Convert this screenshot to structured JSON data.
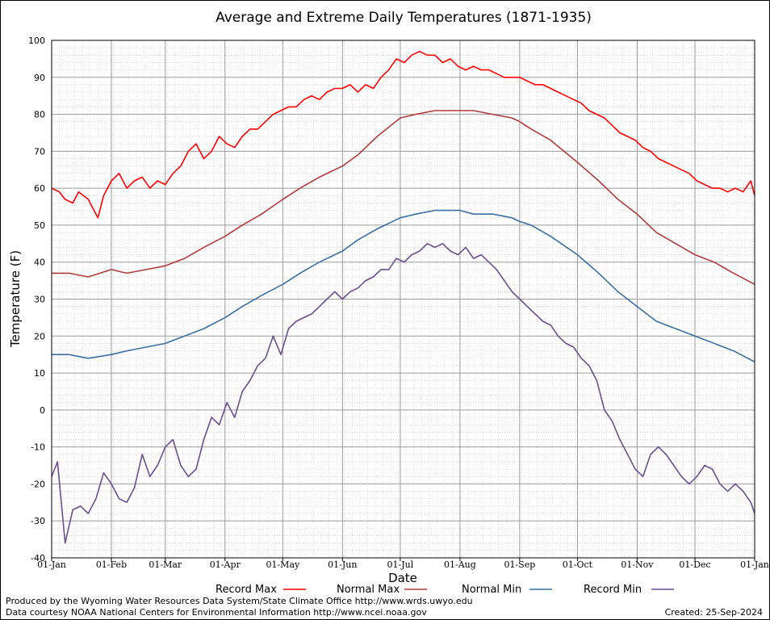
{
  "chart_data": {
    "type": "line",
    "title": "Average and Extreme Daily Temperatures (1871-1935)",
    "xlabel": "Date",
    "ylabel": "Temperature (F)",
    "ylim": [
      -40,
      100
    ],
    "yticks": [
      -40,
      -30,
      -20,
      -10,
      0,
      10,
      20,
      30,
      40,
      50,
      60,
      70,
      80,
      90,
      100
    ],
    "xlim_day_of_year": [
      1,
      366
    ],
    "xticks": [
      {
        "label": "01-Jan",
        "day": 1
      },
      {
        "label": "01-Feb",
        "day": 32
      },
      {
        "label": "01-Mar",
        "day": 60
      },
      {
        "label": "01-Apr",
        "day": 91
      },
      {
        "label": "01-May",
        "day": 121
      },
      {
        "label": "01-Jun",
        "day": 152
      },
      {
        "label": "01-Jul",
        "day": 182
      },
      {
        "label": "01-Aug",
        "day": 213
      },
      {
        "label": "01-Sep",
        "day": 244
      },
      {
        "label": "01-Oct",
        "day": 274
      },
      {
        "label": "01-Nov",
        "day": 305
      },
      {
        "label": "01-Dec",
        "day": 335
      },
      {
        "label": "01-Jan",
        "day": 366
      }
    ],
    "grid": true,
    "legend_position": "bottom",
    "series": [
      {
        "name": "Record Max",
        "color": "#ff0000",
        "x": [
          1,
          5,
          8,
          12,
          15,
          20,
          25,
          28,
          32,
          36,
          40,
          44,
          48,
          52,
          56,
          60,
          64,
          68,
          72,
          76,
          80,
          84,
          88,
          92,
          96,
          100,
          104,
          108,
          112,
          116,
          120,
          124,
          128,
          132,
          136,
          140,
          144,
          148,
          152,
          156,
          160,
          164,
          168,
          172,
          176,
          180,
          184,
          188,
          192,
          196,
          200,
          204,
          208,
          212,
          216,
          220,
          224,
          228,
          232,
          236,
          240,
          244,
          248,
          252,
          256,
          260,
          264,
          268,
          272,
          276,
          280,
          284,
          288,
          292,
          296,
          300,
          304,
          308,
          312,
          316,
          320,
          324,
          328,
          332,
          336,
          340,
          344,
          348,
          352,
          356,
          360,
          364,
          366
        ],
        "y": [
          60,
          59,
          57,
          56,
          59,
          57,
          52,
          58,
          62,
          64,
          60,
          62,
          63,
          60,
          62,
          61,
          64,
          66,
          70,
          72,
          68,
          70,
          74,
          72,
          71,
          74,
          76,
          76,
          78,
          80,
          81,
          82,
          82,
          84,
          85,
          84,
          86,
          87,
          87,
          88,
          86,
          88,
          87,
          90,
          92,
          95,
          94,
          96,
          97,
          96,
          96,
          94,
          95,
          93,
          92,
          93,
          92,
          92,
          91,
          90,
          90,
          90,
          89,
          88,
          88,
          87,
          86,
          85,
          84,
          83,
          81,
          80,
          79,
          77,
          75,
          74,
          73,
          71,
          70,
          68,
          67,
          66,
          65,
          64,
          62,
          61,
          60,
          60,
          59,
          60,
          59,
          62,
          58
        ]
      },
      {
        "name": "Normal Max",
        "color": "#b03a3a",
        "x": [
          1,
          10,
          20,
          32,
          40,
          50,
          60,
          70,
          80,
          91,
          100,
          110,
          121,
          130,
          140,
          152,
          160,
          170,
          182,
          190,
          200,
          213,
          220,
          230,
          240,
          244,
          250,
          260,
          274,
          285,
          295,
          305,
          315,
          325,
          335,
          345,
          355,
          366
        ],
        "y": [
          37,
          37,
          36,
          38,
          37,
          38,
          39,
          41,
          44,
          47,
          50,
          53,
          57,
          60,
          63,
          66,
          69,
          74,
          79,
          80,
          81,
          81,
          81,
          80,
          79,
          78,
          76,
          73,
          67,
          62,
          57,
          53,
          48,
          45,
          42,
          40,
          37,
          34
        ]
      },
      {
        "name": "Normal Min",
        "color": "#3a6ea5",
        "x": [
          1,
          10,
          20,
          32,
          40,
          50,
          60,
          70,
          80,
          91,
          100,
          110,
          121,
          130,
          140,
          152,
          160,
          170,
          182,
          190,
          200,
          213,
          220,
          230,
          240,
          244,
          250,
          260,
          274,
          285,
          295,
          305,
          315,
          325,
          335,
          345,
          355,
          366
        ],
        "y": [
          15,
          15,
          14,
          15,
          16,
          17,
          18,
          20,
          22,
          25,
          28,
          31,
          34,
          37,
          40,
          43,
          46,
          49,
          52,
          53,
          54,
          54,
          53,
          53,
          52,
          51,
          50,
          47,
          42,
          37,
          32,
          28,
          24,
          22,
          20,
          18,
          16,
          13
        ]
      },
      {
        "name": "Record Min",
        "color": "#6a4c93",
        "x": [
          1,
          4,
          8,
          12,
          16,
          20,
          24,
          28,
          32,
          36,
          40,
          44,
          48,
          52,
          56,
          60,
          64,
          68,
          72,
          76,
          80,
          84,
          88,
          92,
          96,
          100,
          104,
          108,
          112,
          116,
          120,
          124,
          128,
          132,
          136,
          140,
          144,
          148,
          152,
          156,
          160,
          164,
          168,
          172,
          176,
          180,
          184,
          188,
          192,
          196,
          200,
          204,
          208,
          212,
          216,
          220,
          224,
          228,
          232,
          236,
          240,
          244,
          248,
          252,
          256,
          260,
          264,
          268,
          272,
          276,
          280,
          284,
          288,
          292,
          296,
          300,
          304,
          308,
          312,
          316,
          320,
          324,
          328,
          332,
          336,
          340,
          344,
          348,
          352,
          356,
          360,
          364,
          366
        ],
        "y": [
          -18,
          -14,
          -36,
          -27,
          -26,
          -28,
          -24,
          -17,
          -20,
          -24,
          -25,
          -21,
          -12,
          -18,
          -15,
          -10,
          -8,
          -15,
          -18,
          -16,
          -8,
          -2,
          -4,
          2,
          -2,
          5,
          8,
          12,
          14,
          20,
          15,
          22,
          24,
          25,
          26,
          28,
          30,
          32,
          30,
          32,
          33,
          35,
          36,
          38,
          38,
          41,
          40,
          42,
          43,
          45,
          44,
          45,
          43,
          42,
          44,
          41,
          42,
          40,
          38,
          35,
          32,
          30,
          28,
          26,
          24,
          23,
          20,
          18,
          17,
          14,
          12,
          8,
          0,
          -3,
          -8,
          -12,
          -16,
          -18,
          -12,
          -10,
          -12,
          -15,
          -18,
          -20,
          -18,
          -15,
          -16,
          -20,
          -22,
          -20,
          -22,
          -25,
          -28
        ]
      }
    ]
  },
  "footer": {
    "produced_by": "Produced by the Wyoming Water Resources Data System/State Climate Office http://www.wrds.uwyo.edu",
    "data_courtesy": "Data courtesy NOAA National Centers for Environmental Information http://www.ncei.noaa.gov",
    "created": "Created:  25-Sep-2024"
  }
}
